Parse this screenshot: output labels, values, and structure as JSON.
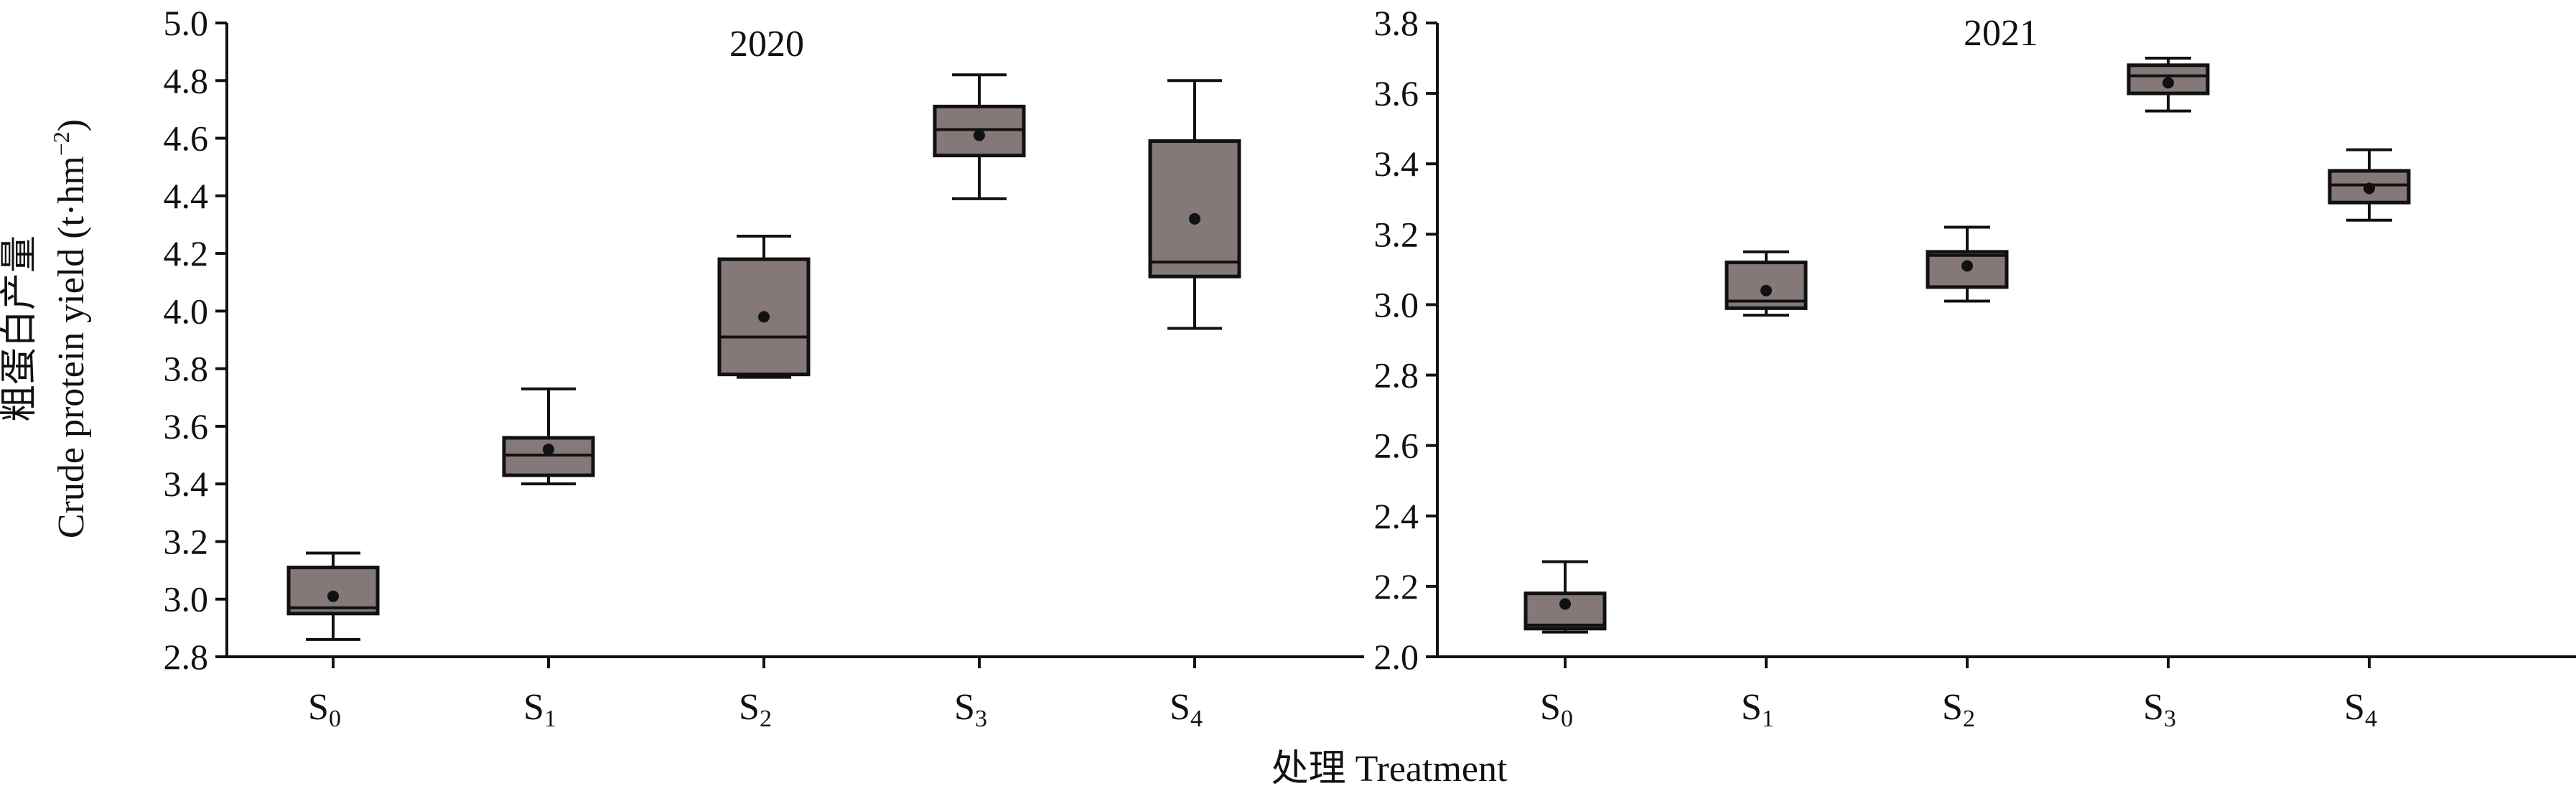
{
  "figure": {
    "y_axis_label_cn": "粗蛋白产量",
    "y_axis_label_en": "Crude protein yield (t·hm",
    "y_axis_label_sup": "−2",
    "y_axis_label_close": ")",
    "x_axis_label": "处理 Treatment",
    "box_fill": "#857878",
    "stroke": "#111111"
  },
  "chart_data": [
    {
      "type": "box",
      "title": "2020",
      "ylabel": "粗蛋白产量 Crude protein yield (t·hm⁻²)",
      "xlabel": "处理 Treatment",
      "ylim": [
        2.8,
        5.0
      ],
      "ytick_step": 0.2,
      "grid": false,
      "categories": [
        {
          "base": "S",
          "sub": "0"
        },
        {
          "base": "S",
          "sub": "1"
        },
        {
          "base": "S",
          "sub": "2"
        },
        {
          "base": "S",
          "sub": "3"
        },
        {
          "base": "S",
          "sub": "4"
        }
      ],
      "boxes": [
        {
          "min": 2.86,
          "q1": 2.95,
          "median": 2.97,
          "q3": 3.11,
          "max": 3.16,
          "mean": 3.01
        },
        {
          "min": 3.4,
          "q1": 3.43,
          "median": 3.5,
          "q3": 3.56,
          "max": 3.73,
          "mean": 3.52
        },
        {
          "min": 3.77,
          "q1": 3.78,
          "median": 3.91,
          "q3": 4.18,
          "max": 4.26,
          "mean": 3.98
        },
        {
          "min": 4.39,
          "q1": 4.54,
          "median": 4.63,
          "q3": 4.71,
          "max": 4.82,
          "mean": 4.61
        },
        {
          "min": 3.94,
          "q1": 4.12,
          "median": 4.17,
          "q3": 4.59,
          "max": 4.8,
          "mean": 4.32
        }
      ]
    },
    {
      "type": "box",
      "title": "2021",
      "ylabel": "",
      "xlabel": "处理 Treatment",
      "ylim": [
        2.0,
        3.8
      ],
      "ytick_step": 0.2,
      "grid": false,
      "categories": [
        {
          "base": "S",
          "sub": "0"
        },
        {
          "base": "S",
          "sub": "1"
        },
        {
          "base": "S",
          "sub": "2"
        },
        {
          "base": "S",
          "sub": "3"
        },
        {
          "base": "S",
          "sub": "4"
        }
      ],
      "boxes": [
        {
          "min": 2.07,
          "q1": 2.08,
          "median": 2.09,
          "q3": 2.18,
          "max": 2.27,
          "mean": 2.15
        },
        {
          "min": 2.97,
          "q1": 2.99,
          "median": 3.01,
          "q3": 3.12,
          "max": 3.15,
          "mean": 3.04
        },
        {
          "min": 3.01,
          "q1": 3.05,
          "median": 3.14,
          "q3": 3.15,
          "max": 3.22,
          "mean": 3.11
        },
        {
          "min": 3.55,
          "q1": 3.6,
          "median": 3.65,
          "q3": 3.68,
          "max": 3.7,
          "mean": 3.63
        },
        {
          "min": 3.24,
          "q1": 3.29,
          "median": 3.34,
          "q3": 3.38,
          "max": 3.44,
          "mean": 3.33
        }
      ]
    }
  ]
}
